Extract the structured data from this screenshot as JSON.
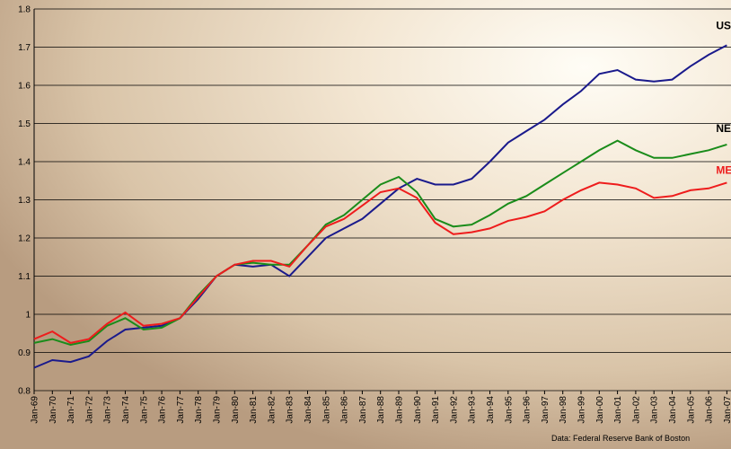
{
  "chart_data": {
    "type": "line",
    "source": "Data:  Federal Reserve Bank of Boston",
    "categories": [
      "Jan-69",
      "Jan-70",
      "Jan-71",
      "Jan-72",
      "Jan-73",
      "Jan-74",
      "Jan-75",
      "Jan-76",
      "Jan-77",
      "Jan-78",
      "Jan-79",
      "Jan-80",
      "Jan-81",
      "Jan-82",
      "Jan-83",
      "Jan-84",
      "Jan-85",
      "Jan-86",
      "Jan-87",
      "Jan-88",
      "Jan-89",
      "Jan-90",
      "Jan-91",
      "Jan-92",
      "Jan-93",
      "Jan-94",
      "Jan-95",
      "Jan-96",
      "Jan-97",
      "Jan-98",
      "Jan-99",
      "Jan-00",
      "Jan-01",
      "Jan-02",
      "Jan-03",
      "Jan-04",
      "Jan-05",
      "Jan-06",
      "Jan-07"
    ],
    "series": [
      {
        "name": "US",
        "color": "#1a1a8c",
        "label_color": "#000000",
        "values": [
          0.86,
          0.88,
          0.875,
          0.89,
          0.93,
          0.96,
          0.965,
          0.97,
          0.99,
          1.04,
          1.1,
          1.13,
          1.125,
          1.13,
          1.1,
          1.15,
          1.2,
          1.225,
          1.25,
          1.29,
          1.33,
          1.355,
          1.34,
          1.34,
          1.355,
          1.4,
          1.45,
          1.48,
          1.51,
          1.55,
          1.585,
          1.63,
          1.64,
          1.615,
          1.61,
          1.615,
          1.65,
          1.68,
          1.705
        ]
      },
      {
        "name": "NE",
        "color": "#1a8c1a",
        "label_color": "#000000",
        "values": [
          0.925,
          0.935,
          0.92,
          0.93,
          0.97,
          0.99,
          0.96,
          0.965,
          0.99,
          1.05,
          1.1,
          1.13,
          1.135,
          1.13,
          1.13,
          1.18,
          1.235,
          1.26,
          1.3,
          1.34,
          1.36,
          1.32,
          1.25,
          1.23,
          1.235,
          1.26,
          1.29,
          1.31,
          1.34,
          1.37,
          1.4,
          1.43,
          1.455,
          1.43,
          1.41,
          1.41,
          1.42,
          1.43,
          1.445
        ]
      },
      {
        "name": "ME",
        "color": "#ee1c1c",
        "label_color": "#ee1c1c",
        "values": [
          0.935,
          0.955,
          0.925,
          0.935,
          0.975,
          1.005,
          0.97,
          0.975,
          0.99,
          1.045,
          1.1,
          1.13,
          1.14,
          1.14,
          1.125,
          1.18,
          1.23,
          1.25,
          1.285,
          1.32,
          1.33,
          1.305,
          1.24,
          1.21,
          1.215,
          1.225,
          1.245,
          1.255,
          1.27,
          1.3,
          1.325,
          1.345,
          1.34,
          1.33,
          1.305,
          1.31,
          1.325,
          1.33,
          1.345
        ]
      }
    ],
    "ylim": [
      0.8,
      1.8
    ],
    "yticks": [
      0.8,
      0.9,
      1,
      1.1,
      1.2,
      1.3,
      1.4,
      1.5,
      1.6,
      1.7,
      1.8
    ],
    "grid": true
  }
}
